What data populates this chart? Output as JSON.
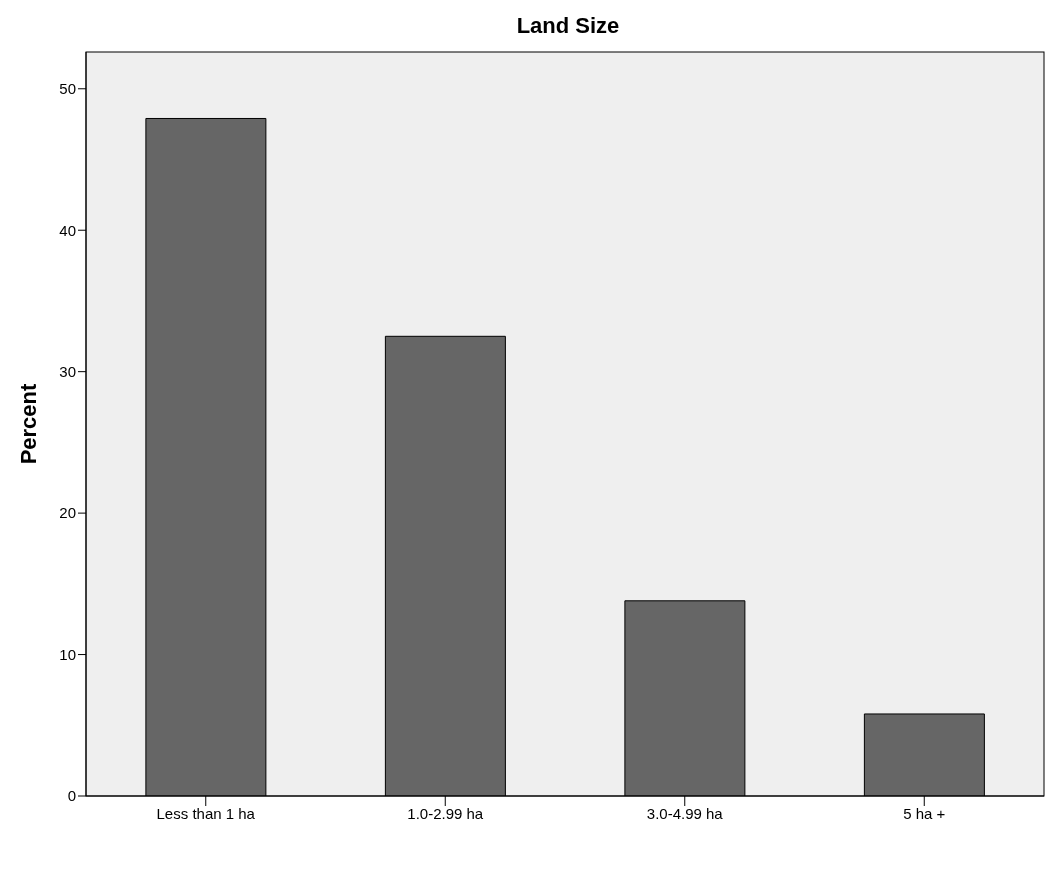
{
  "chart_data": {
    "type": "bar",
    "title": "Land Size",
    "ylabel": "Percent",
    "categories": [
      "Less than 1 ha",
      "1.0-2.99 ha",
      "3.0-4.99 ha",
      "5 ha +"
    ],
    "values": [
      47.9,
      32.5,
      13.8,
      5.8
    ],
    "color": "#666666",
    "ylim": [
      0,
      52.6
    ],
    "yticks": [
      0,
      10,
      20,
      30,
      40,
      50
    ],
    "grid": false,
    "legend": false
  }
}
